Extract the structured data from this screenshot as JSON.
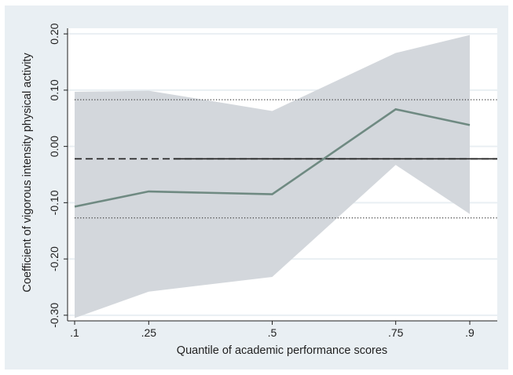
{
  "chart_data": {
    "type": "line",
    "xlabel": "Quantile of academic performance scores",
    "ylabel": "Coefficient of vigorous intensity physical activity",
    "x_tick_labels": [
      ".1",
      ".25",
      ".5",
      ".75",
      ".9"
    ],
    "x": [
      0.1,
      0.25,
      0.5,
      0.75,
      0.9
    ],
    "y_tick_labels": [
      "0.20",
      "0.10",
      "0.00",
      "-0.10",
      "-0.20",
      "-0.30"
    ],
    "y_ticks": [
      0.2,
      0.1,
      0.0,
      -0.1,
      -0.2,
      -0.3
    ],
    "xlim": [
      0.1,
      0.9
    ],
    "ylim": [
      -0.31,
      0.21
    ],
    "grid": true,
    "series": [
      {
        "role": "quantile_estimate",
        "style": "solid",
        "color": "#6f8a82",
        "values": [
          -0.107,
          -0.08,
          -0.085,
          0.066,
          0.038
        ]
      },
      {
        "role": "confidence_band",
        "style": "band",
        "color": "#d3d7dc",
        "lower": [
          -0.305,
          -0.258,
          -0.232,
          -0.033,
          -0.12
        ],
        "upper": [
          0.097,
          0.099,
          0.063,
          0.166,
          0.198
        ]
      }
    ],
    "reference_lines": [
      {
        "role": "ols_estimate",
        "style": "dashed-solid",
        "color": "#1f1f1f",
        "value": -0.022
      },
      {
        "role": "ols_ci_upper",
        "style": "dotted",
        "color": "#3a3a3a",
        "value": 0.083
      },
      {
        "role": "ols_ci_lower",
        "style": "dotted",
        "color": "#3a3a3a",
        "value": -0.127
      }
    ],
    "colors": {
      "background": "#e9eff3",
      "plot_area": "#ffffff",
      "gridline": "#e9eff3"
    }
  }
}
